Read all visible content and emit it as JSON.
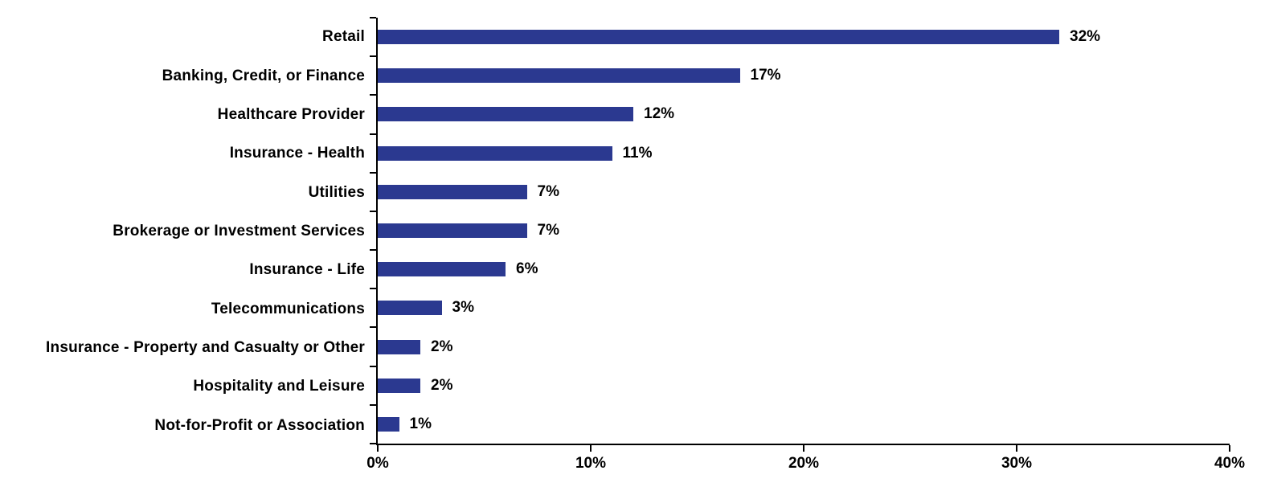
{
  "chart_data": {
    "type": "bar",
    "orientation": "horizontal",
    "categories": [
      "Retail",
      "Banking, Credit, or Finance",
      "Healthcare Provider",
      "Insurance - Health",
      "Utilities",
      "Brokerage or Investment Services",
      "Insurance - Life",
      "Telecommunications",
      "Insurance - Property and Casualty or Other",
      "Hospitality and Leisure",
      "Not-for-Profit or Association"
    ],
    "values": [
      32,
      17,
      12,
      11,
      7,
      7,
      6,
      3,
      2,
      2,
      1
    ],
    "value_labels": [
      "32%",
      "17%",
      "12%",
      "11%",
      "7%",
      "7%",
      "6%",
      "3%",
      "2%",
      "2%",
      "1%"
    ],
    "xlim": [
      0,
      40
    ],
    "x_ticks": [
      0,
      10,
      20,
      30,
      40
    ],
    "x_tick_labels": [
      "0%",
      "10%",
      "20%",
      "30%",
      "40%"
    ],
    "grid": false,
    "legend": false,
    "bar_color": "#2B3990",
    "axis_color": "#000000",
    "text_color": "#000000"
  }
}
